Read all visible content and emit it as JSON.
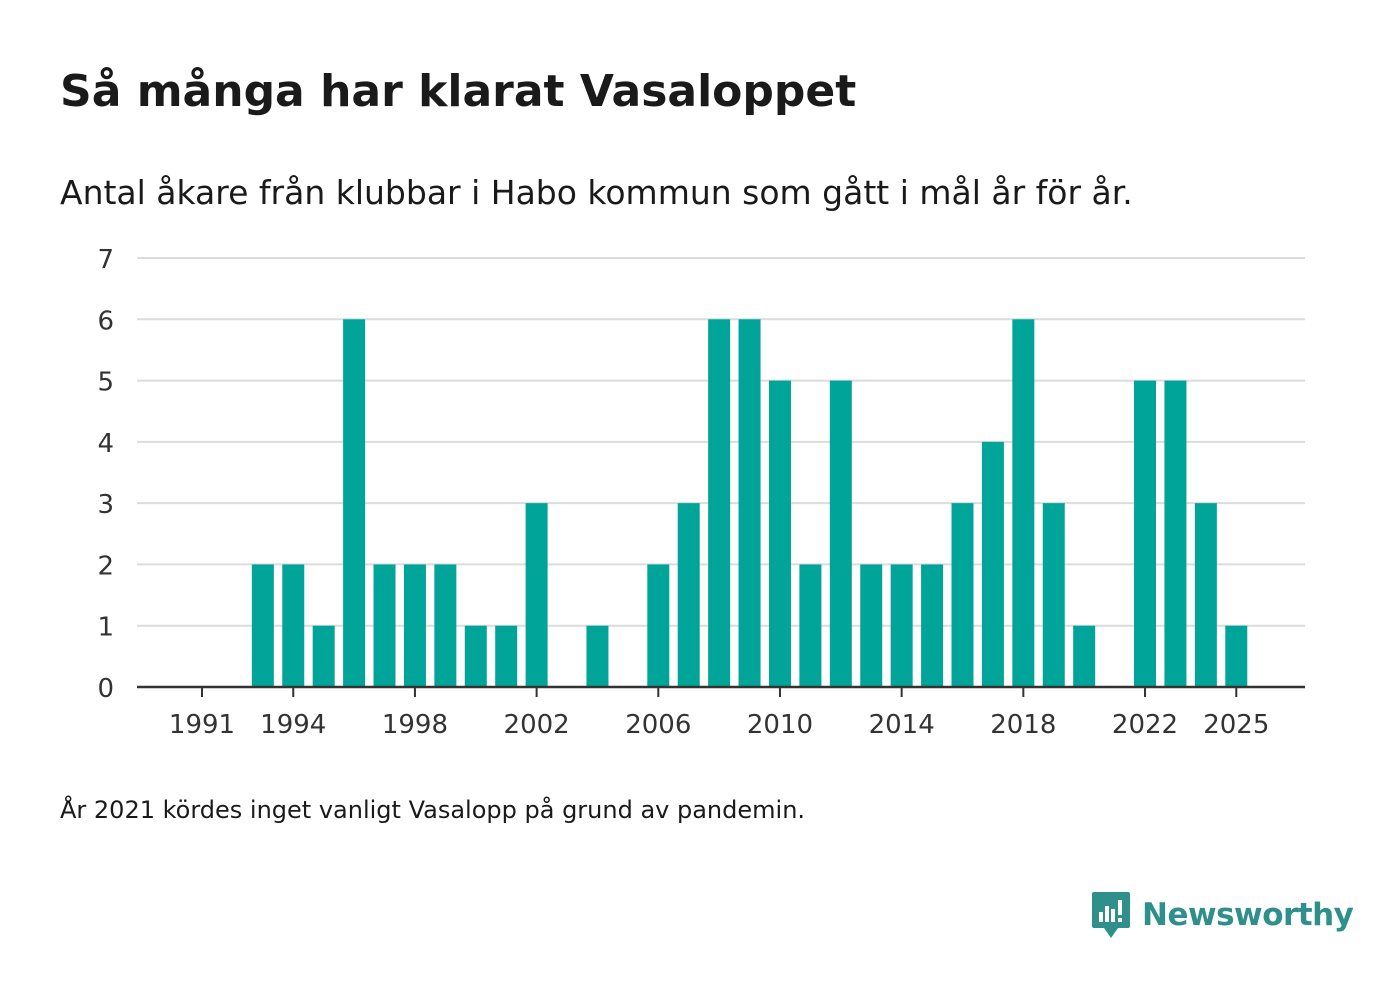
{
  "title": "Så många har klarat Vasaloppet",
  "subtitle": "Antal åkare från klubbar i Habo kommun som gått i mål år för år.",
  "note": "År 2021 kördes inget vanligt Vasalopp på grund av pandemin.",
  "brand": {
    "name": "Newsworthy",
    "color": "#2f8f8a",
    "icon": "newsworthy-logo-icon"
  },
  "colors": {
    "bar": "#00a499",
    "grid": "#dcdcdc",
    "axis": "#333333",
    "text": "#333333"
  },
  "chart_data": {
    "type": "bar",
    "title": "Så många har klarat Vasaloppet",
    "xlabel": "",
    "ylabel": "",
    "ylim": [
      0,
      7
    ],
    "yticks": [
      0,
      1,
      2,
      3,
      4,
      5,
      6,
      7
    ],
    "xticks": [
      1991,
      1994,
      1998,
      2002,
      2006,
      2010,
      2014,
      2018,
      2022,
      2025
    ],
    "grid": true,
    "categories": [
      1991,
      1992,
      1993,
      1994,
      1995,
      1996,
      1997,
      1998,
      1999,
      2000,
      2001,
      2002,
      2003,
      2004,
      2005,
      2006,
      2007,
      2008,
      2009,
      2010,
      2011,
      2012,
      2013,
      2014,
      2015,
      2016,
      2017,
      2018,
      2019,
      2020,
      2021,
      2022,
      2023,
      2024,
      2025
    ],
    "values": [
      0,
      0,
      2,
      2,
      1,
      6,
      2,
      2,
      2,
      1,
      1,
      3,
      0,
      1,
      0,
      2,
      3,
      6,
      6,
      5,
      2,
      5,
      2,
      2,
      2,
      3,
      4,
      6,
      3,
      1,
      0,
      5,
      5,
      3,
      1
    ]
  }
}
